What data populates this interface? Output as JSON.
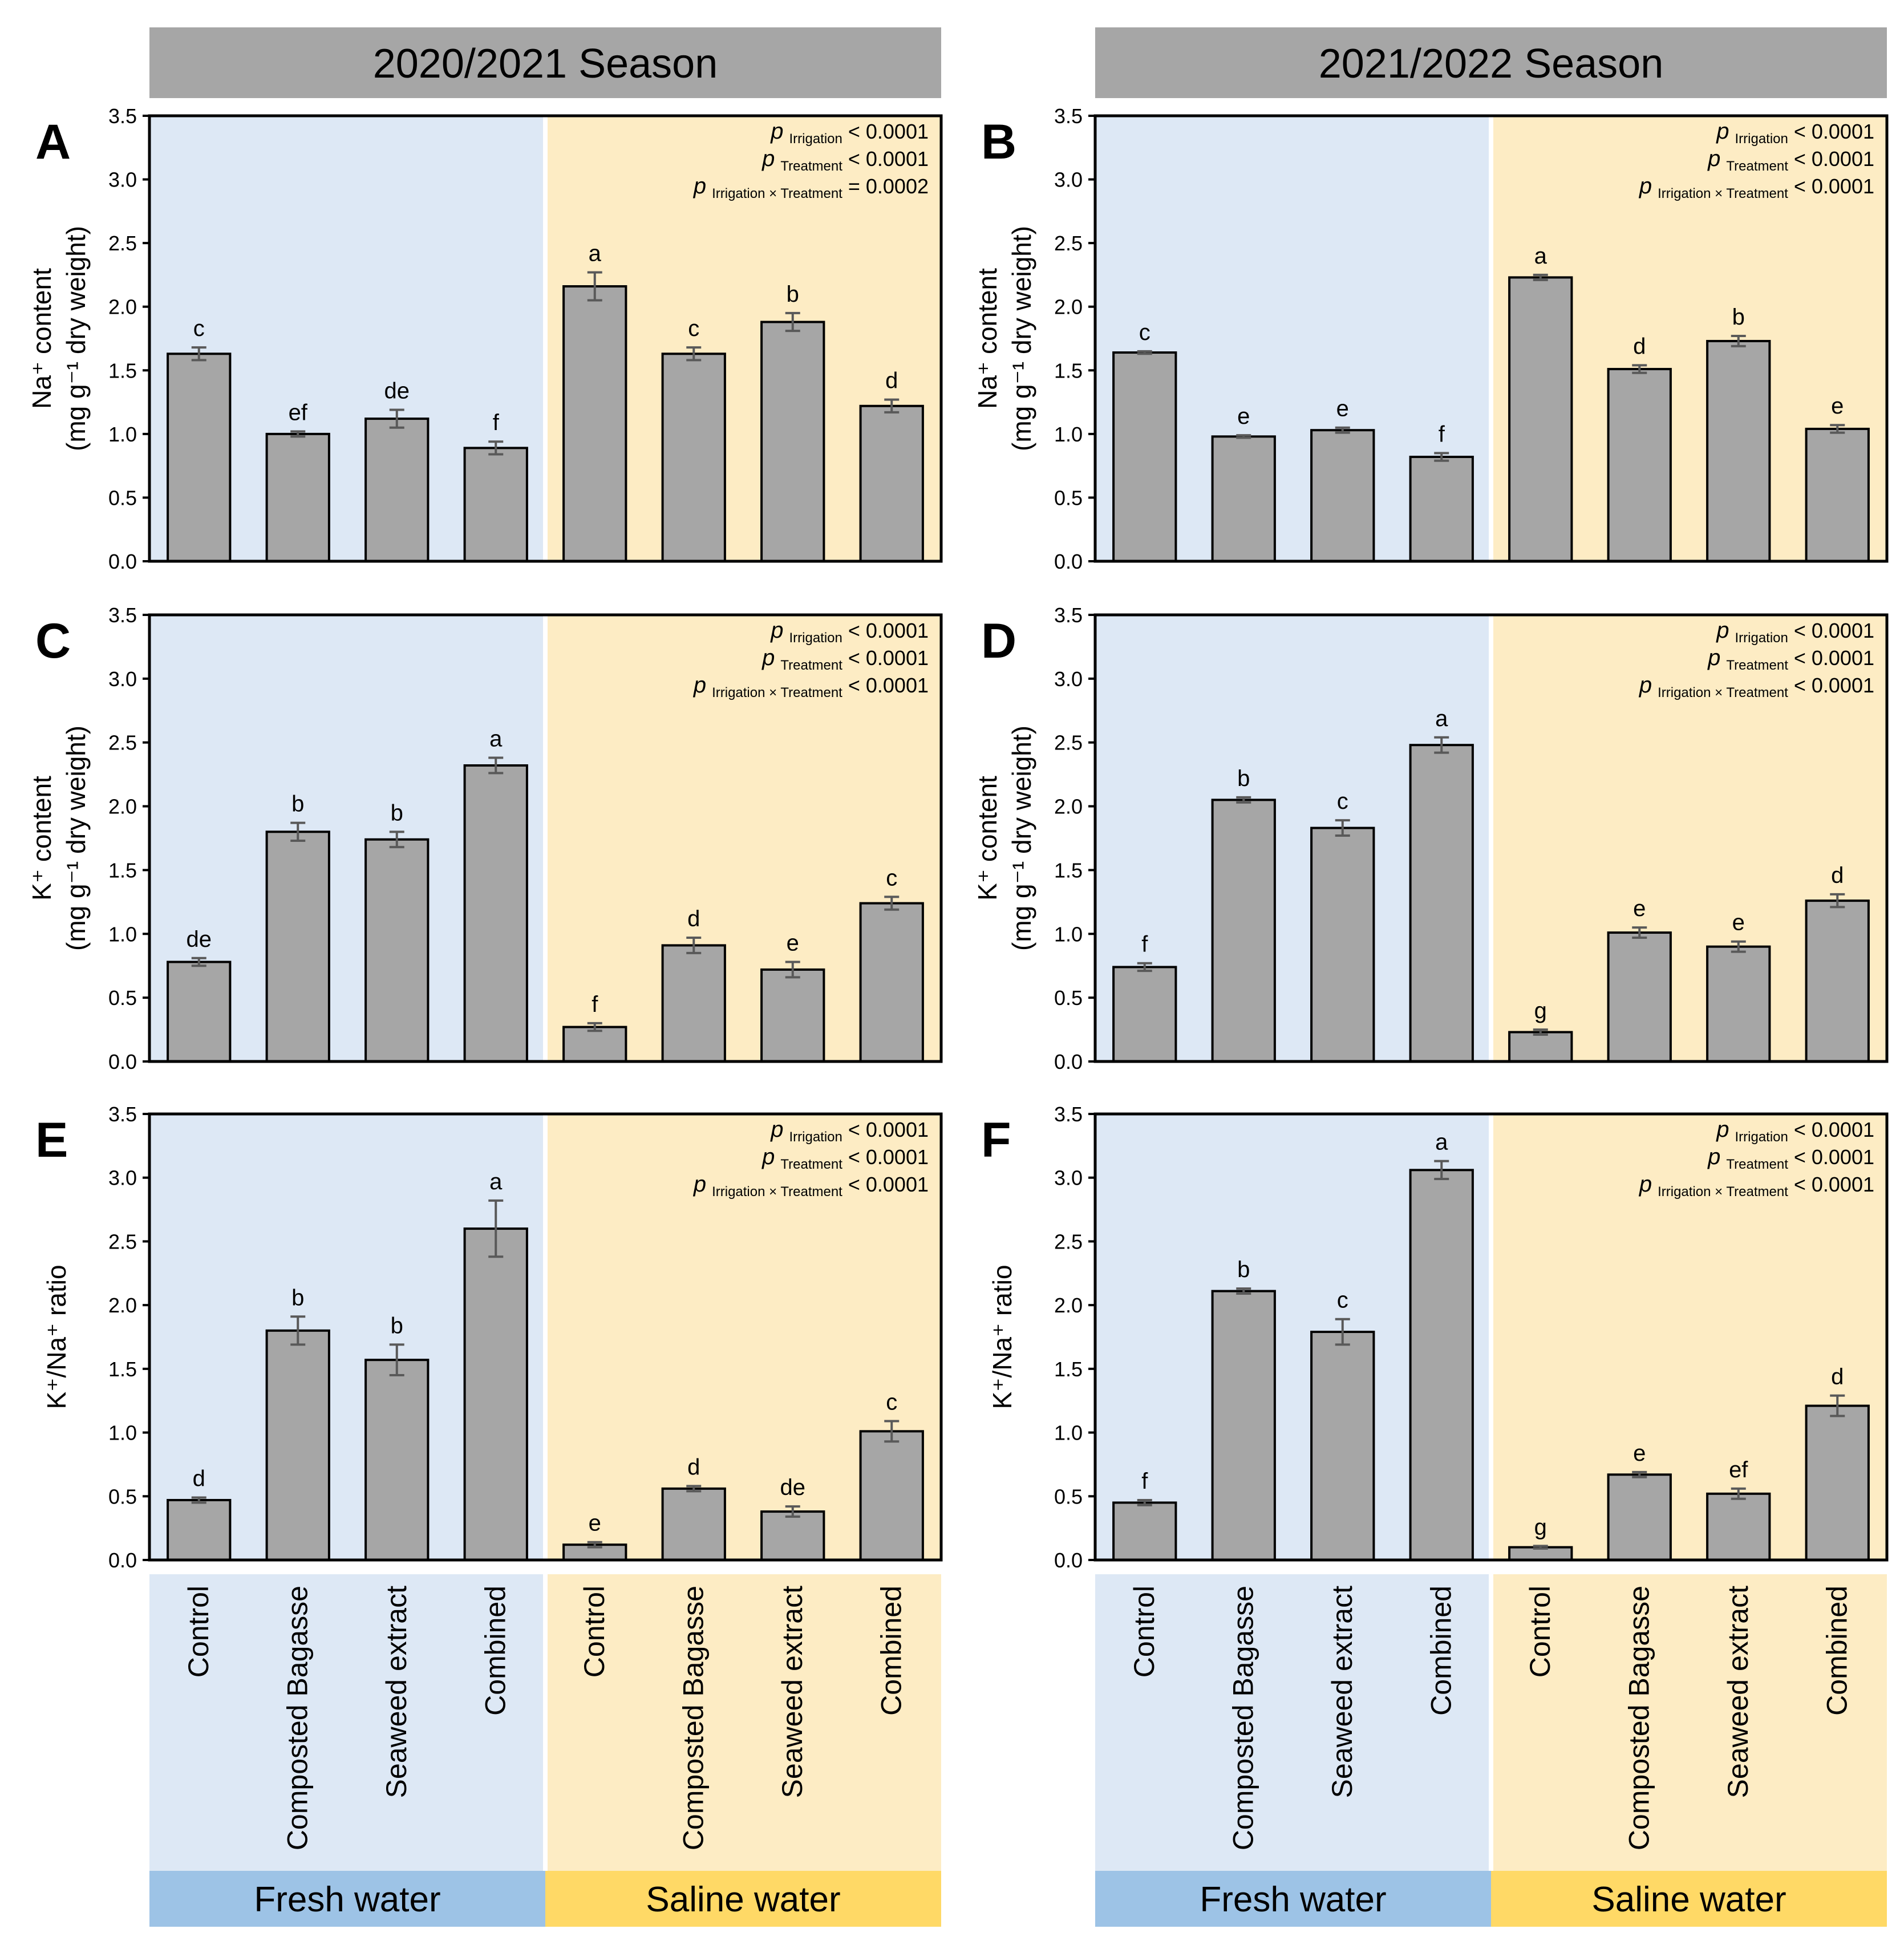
{
  "colors": {
    "fresh_bg": "#dde8f5",
    "saline_bg": "#fdecc4",
    "fresh_strip": "#9dc3e6",
    "saline_strip": "#ffd966",
    "header_bg": "#a6a6a6",
    "bar_fill": "#a6a6a6",
    "bar_stroke": "#000000",
    "error_bar": "#595959"
  },
  "season_titles": [
    "2020/2021 Season",
    "2021/2022 Season"
  ],
  "water_labels": [
    "Fresh water",
    "Saline water"
  ],
  "categories": [
    "Control",
    "Composted Bagasse",
    "Seaweed extract",
    "Combined"
  ],
  "y_ticks": [
    "0.0",
    "0.5",
    "1.0",
    "1.5",
    "2.0",
    "2.5",
    "3.0",
    "3.5"
  ],
  "ylabels": {
    "na": [
      "Na⁺ content",
      "(mg g⁻¹ dry weight)"
    ],
    "k": [
      "K⁺ content",
      "(mg g⁻¹ dry weight)"
    ],
    "ratio": [
      "K⁺/Na⁺ ratio"
    ]
  },
  "p_labels": {
    "p": "p",
    "irrigation": "Irrigation",
    "treatment": "Treatment",
    "interaction": "Irrigation × Treatment"
  },
  "chart_data": [
    {
      "panel": "A",
      "type": "bar",
      "season": "2020/2021 Season",
      "ylabel_key": "na",
      "ylim": [
        0,
        3.5
      ],
      "groups": [
        "Fresh water",
        "Saline water"
      ],
      "values": [
        1.63,
        1.0,
        1.12,
        0.89,
        2.16,
        1.63,
        1.88,
        1.22
      ],
      "errors": [
        0.05,
        0.02,
        0.07,
        0.05,
        0.11,
        0.05,
        0.07,
        0.05
      ],
      "letters": [
        "c",
        "ef",
        "de",
        "f",
        "a",
        "c",
        "b",
        "d"
      ],
      "p_values": [
        "< 0.0001",
        "< 0.0001",
        "= 0.0002"
      ]
    },
    {
      "panel": "B",
      "type": "bar",
      "season": "2021/2022 Season",
      "ylabel_key": "na",
      "ylim": [
        0,
        3.5
      ],
      "groups": [
        "Fresh water",
        "Saline water"
      ],
      "values": [
        1.64,
        0.98,
        1.03,
        0.82,
        2.23,
        1.51,
        1.73,
        1.04
      ],
      "errors": [
        0.01,
        0.01,
        0.02,
        0.03,
        0.02,
        0.03,
        0.04,
        0.03
      ],
      "letters": [
        "c",
        "e",
        "e",
        "f",
        "a",
        "d",
        "b",
        "e"
      ],
      "p_values": [
        "< 0.0001",
        "< 0.0001",
        "< 0.0001"
      ]
    },
    {
      "panel": "C",
      "type": "bar",
      "season": "2020/2021 Season",
      "ylabel_key": "k",
      "ylim": [
        0,
        3.5
      ],
      "groups": [
        "Fresh water",
        "Saline water"
      ],
      "values": [
        0.78,
        1.8,
        1.74,
        2.32,
        0.27,
        0.91,
        0.72,
        1.24
      ],
      "errors": [
        0.03,
        0.07,
        0.06,
        0.06,
        0.03,
        0.06,
        0.06,
        0.05
      ],
      "letters": [
        "de",
        "b",
        "b",
        "a",
        "f",
        "d",
        "e",
        "c"
      ],
      "p_values": [
        "< 0.0001",
        "< 0.0001",
        "< 0.0001"
      ]
    },
    {
      "panel": "D",
      "type": "bar",
      "season": "2021/2022 Season",
      "ylabel_key": "k",
      "ylim": [
        0,
        3.5
      ],
      "groups": [
        "Fresh water",
        "Saline water"
      ],
      "values": [
        0.74,
        2.05,
        1.83,
        2.48,
        0.23,
        1.01,
        0.9,
        1.26
      ],
      "errors": [
        0.03,
        0.02,
        0.06,
        0.06,
        0.02,
        0.04,
        0.04,
        0.05
      ],
      "letters": [
        "f",
        "b",
        "c",
        "a",
        "g",
        "e",
        "e",
        "d"
      ],
      "p_values": [
        "< 0.0001",
        "< 0.0001",
        "< 0.0001"
      ]
    },
    {
      "panel": "E",
      "type": "bar",
      "season": "2020/2021 Season",
      "ylabel_key": "ratio",
      "ylim": [
        0,
        3.5
      ],
      "groups": [
        "Fresh water",
        "Saline water"
      ],
      "values": [
        0.47,
        1.8,
        1.57,
        2.6,
        0.12,
        0.56,
        0.38,
        1.01
      ],
      "errors": [
        0.02,
        0.11,
        0.12,
        0.22,
        0.02,
        0.02,
        0.04,
        0.08
      ],
      "letters": [
        "d",
        "b",
        "b",
        "a",
        "e",
        "d",
        "de",
        "c"
      ],
      "p_values": [
        "< 0.0001",
        "< 0.0001",
        "< 0.0001"
      ]
    },
    {
      "panel": "F",
      "type": "bar",
      "season": "2021/2022 Season",
      "ylabel_key": "ratio",
      "ylim": [
        0,
        3.5
      ],
      "groups": [
        "Fresh water",
        "Saline water"
      ],
      "values": [
        0.45,
        2.11,
        1.79,
        3.06,
        0.1,
        0.67,
        0.52,
        1.21
      ],
      "errors": [
        0.02,
        0.02,
        0.1,
        0.07,
        0.01,
        0.02,
        0.04,
        0.08
      ],
      "letters": [
        "f",
        "b",
        "c",
        "a",
        "g",
        "e",
        "ef",
        "d"
      ],
      "p_values": [
        "< 0.0001",
        "< 0.0001",
        "< 0.0001"
      ]
    }
  ]
}
